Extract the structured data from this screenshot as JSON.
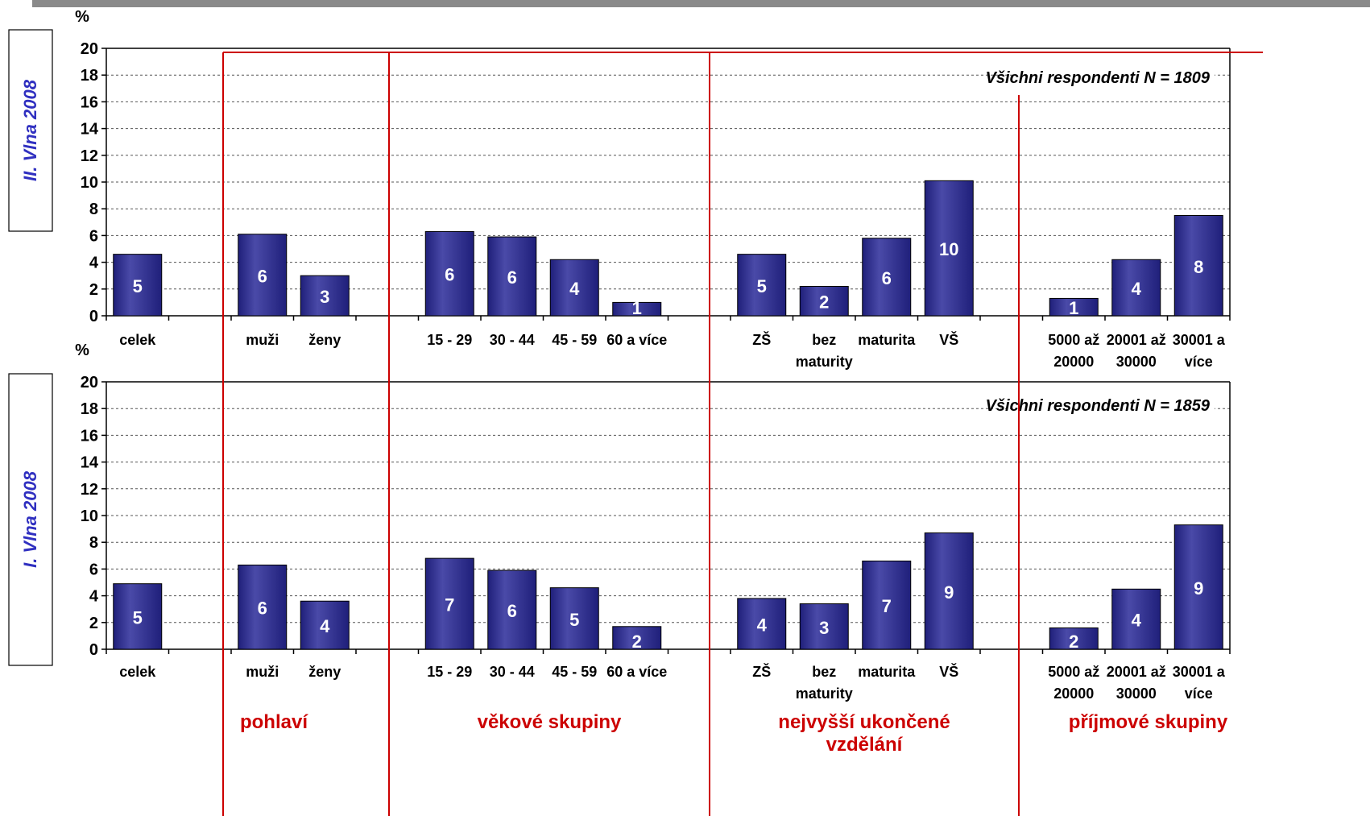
{
  "colors": {
    "bar": "#1f1f7a",
    "bar_light": "#4a4aa8",
    "label": "#ffffff",
    "side_label": "#3030c0",
    "section": "#cc0000",
    "grid": "#555555"
  },
  "chart_data": [
    {
      "type": "bar",
      "side_label": "II. Vlna 2008",
      "unit": "%",
      "annotation": "Všichni respondenti N = 1809",
      "ylim": [
        0,
        20
      ],
      "yticks": [
        "0",
        "2",
        "4",
        "6",
        "8",
        "10",
        "12",
        "14",
        "16",
        "18",
        "20"
      ],
      "categories": [
        [
          "celek"
        ],
        [
          ""
        ],
        [
          "muži"
        ],
        [
          "ženy"
        ],
        [
          ""
        ],
        [
          "15 - 29"
        ],
        [
          "30 - 44"
        ],
        [
          "45 - 59"
        ],
        [
          "60 a více"
        ],
        [
          ""
        ],
        [
          "ZŠ"
        ],
        [
          "bez",
          "maturity"
        ],
        [
          "maturita"
        ],
        [
          "VŠ"
        ],
        [
          ""
        ],
        [
          "5000 až",
          "20000"
        ],
        [
          "20001 až",
          "30000"
        ],
        [
          "30001 a",
          "více"
        ]
      ],
      "values": [
        4.6,
        null,
        6.1,
        3.0,
        null,
        6.3,
        5.9,
        4.2,
        1.0,
        null,
        4.6,
        2.2,
        5.8,
        10.1,
        null,
        1.3,
        4.2,
        7.5
      ],
      "data_labels": [
        "5",
        "",
        "6",
        "3",
        "",
        "6",
        "6",
        "4",
        "1",
        "",
        "5",
        "2",
        "6",
        "10",
        "",
        "1",
        "4",
        "8"
      ]
    },
    {
      "type": "bar",
      "side_label": "I. Vlna 2008",
      "unit": "%",
      "annotation": "Všichni respondenti N = 1859",
      "ylim": [
        0,
        20
      ],
      "yticks": [
        "0",
        "2",
        "4",
        "6",
        "8",
        "10",
        "12",
        "14",
        "16",
        "18",
        "20"
      ],
      "categories": [
        [
          "celek"
        ],
        [
          ""
        ],
        [
          "muži"
        ],
        [
          "ženy"
        ],
        [
          ""
        ],
        [
          "15 - 29"
        ],
        [
          "30 - 44"
        ],
        [
          "45 - 59"
        ],
        [
          "60 a více"
        ],
        [
          ""
        ],
        [
          "ZŠ"
        ],
        [
          "bez",
          "maturity"
        ],
        [
          "maturita"
        ],
        [
          "VŠ"
        ],
        [
          ""
        ],
        [
          "5000 až",
          "20000"
        ],
        [
          "20001 až",
          "30000"
        ],
        [
          "30001 a",
          "více"
        ]
      ],
      "values": [
        4.9,
        null,
        6.3,
        3.6,
        null,
        6.8,
        5.9,
        4.6,
        1.7,
        null,
        3.8,
        3.4,
        6.6,
        8.7,
        null,
        1.6,
        4.5,
        9.3
      ],
      "data_labels": [
        "5",
        "",
        "6",
        "4",
        "",
        "7",
        "6",
        "5",
        "2",
        "",
        "4",
        "3",
        "7",
        "9",
        "",
        "2",
        "4",
        "9"
      ]
    }
  ],
  "sections": [
    {
      "label": [
        "pohlaví"
      ]
    },
    {
      "label": [
        "věkové skupiny"
      ]
    },
    {
      "label": [
        "nejvyšší ukončené",
        "vzdělání"
      ]
    },
    {
      "label": [
        "příjmové skupiny"
      ]
    }
  ]
}
